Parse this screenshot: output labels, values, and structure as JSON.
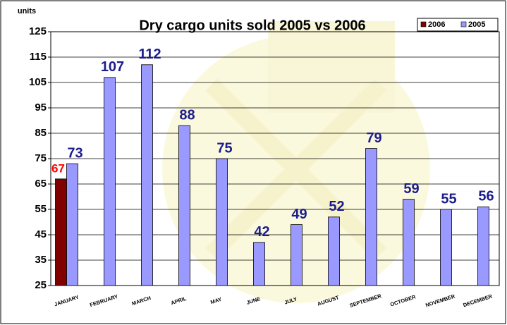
{
  "chart_data": {
    "type": "bar",
    "title": "Dry cargo units sold 2005 vs 2006",
    "y_label": "units",
    "categories": [
      "JANUARY",
      "FEBRUARY",
      "MARCH",
      "APRIL",
      "MAY",
      "JUNE",
      "JULY",
      "AUGUST",
      "SEPTEMBER",
      "OCTOBER",
      "NOVEMBER",
      "DECEMBER"
    ],
    "series": [
      {
        "name": "2006",
        "color": "#800000",
        "label_color": "#ff0000",
        "values": [
          67,
          null,
          null,
          null,
          null,
          null,
          null,
          null,
          null,
          null,
          null,
          null
        ]
      },
      {
        "name": "2005",
        "color": "#9999ff",
        "label_color": "#1c1c8c",
        "values": [
          73,
          107,
          112,
          88,
          75,
          42,
          49,
          52,
          79,
          59,
          55,
          56
        ]
      }
    ],
    "ylim": [
      25,
      125
    ],
    "yticks": [
      25,
      35,
      45,
      55,
      65,
      75,
      85,
      95,
      105,
      115,
      125
    ],
    "grid": true,
    "legend": "top-right"
  }
}
